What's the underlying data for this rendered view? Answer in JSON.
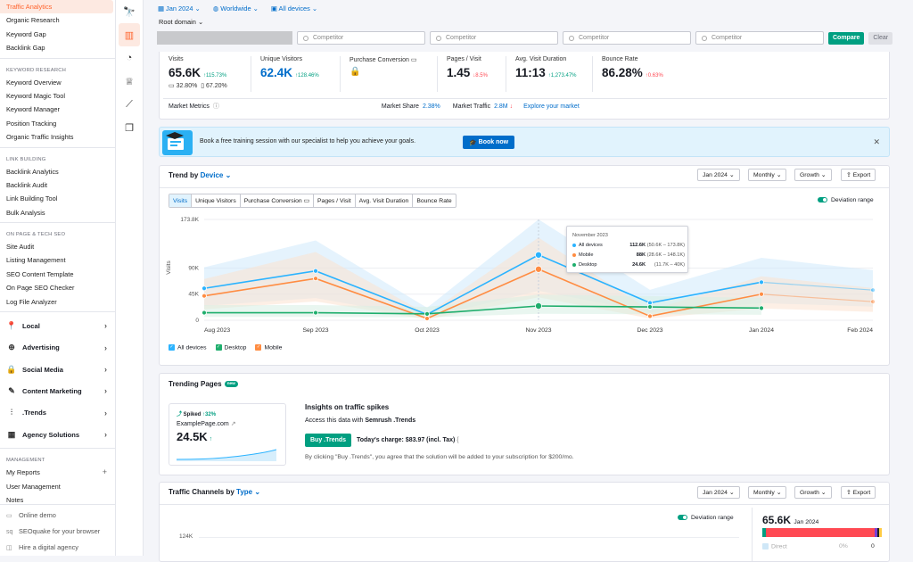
{
  "sidebar": {
    "top_items": [
      "Traffic Analytics",
      "Organic Research",
      "Keyword Gap",
      "Backlink Gap"
    ],
    "sections": [
      {
        "title": "KEYWORD RESEARCH",
        "items": [
          "Keyword Overview",
          "Keyword Magic Tool",
          "Keyword Manager",
          "Position Tracking",
          "Organic Traffic Insights"
        ]
      },
      {
        "title": "LINK BUILDING",
        "items": [
          "Backlink Analytics",
          "Backlink Audit",
          "Link Building Tool",
          "Bulk Analysis"
        ]
      },
      {
        "title": "ON PAGE & TECH SEO",
        "items": [
          "Site Audit",
          "Listing Management",
          "SEO Content Template",
          "On Page SEO Checker",
          "Log File Analyzer"
        ]
      }
    ],
    "categories": [
      "Local",
      "Advertising",
      "Social Media",
      "Content Marketing",
      ".Trends",
      "Agency Solutions"
    ],
    "management_title": "MANAGEMENT",
    "management_items": [
      "My Reports",
      "User Management",
      "Notes"
    ],
    "bottom_items": [
      "Online demo",
      "SEOquake for your browser",
      "Hire a digital agency"
    ]
  },
  "topbar": {
    "date": "Jan 2024",
    "region": "Worldwide",
    "device": "All devices",
    "root_domain": "Root domain"
  },
  "competitor_placeholder": "Competitor",
  "compare_label": "Compare",
  "clear_label": "Clear",
  "metrics": {
    "visits": {
      "label": "Visits",
      "value": "65.6K",
      "change": "115.73%",
      "desktop": "32.80%",
      "mobile": "67.20%"
    },
    "unique": {
      "label": "Unique Visitors",
      "value": "62.4K",
      "change": "128.46%"
    },
    "purchase": {
      "label": "Purchase Conversion"
    },
    "pages": {
      "label": "Pages / Visit",
      "value": "1.45",
      "change": "8.5%"
    },
    "duration": {
      "label": "Avg. Visit Duration",
      "value": "11:13",
      "change": "1,273.47%"
    },
    "bounce": {
      "label": "Bounce Rate",
      "value": "86.28%",
      "change": "0.63%"
    }
  },
  "market": {
    "label": "Market Metrics",
    "share_label": "Market Share",
    "share_value": "2.38%",
    "traffic_label": "Market Traffic",
    "traffic_value": "2.8M",
    "explore": "Explore your market"
  },
  "banner": {
    "text": "Book a free training session with our specialist to help you achieve your goals.",
    "button": "Book now"
  },
  "trend": {
    "title": "Trend by",
    "title_link": "Device",
    "date": "Jan 2024",
    "period": "Monthly",
    "type": "Growth",
    "export": "Export",
    "tabs": [
      "Visits",
      "Unique Visitors",
      "Purchase Conversion",
      "Pages / Visit",
      "Avg. Visit Duration",
      "Bounce Rate"
    ],
    "deviation": "Deviation range",
    "legend": [
      "All devices",
      "Desktop",
      "Mobile"
    ],
    "tooltip": {
      "title": "November 2023",
      "rows": [
        {
          "name": "All devices",
          "value": "112.6K",
          "range": "(50.6K – 173.8K)"
        },
        {
          "name": "Mobile",
          "value": "88K",
          "range": "(28.6K – 148.1K)"
        },
        {
          "name": "Desktop",
          "value": "24.6K",
          "range": "(11.7K – 40K)"
        }
      ]
    }
  },
  "chart_data": {
    "type": "line",
    "categories": [
      "Aug 2023",
      "Sep 2023",
      "Oct 2023",
      "Nov 2023",
      "Dec 2023",
      "Jan 2024",
      "Feb 2024"
    ],
    "yticks": [
      "173.8K",
      "90K",
      "45K",
      "0"
    ],
    "ylabel": "Visits",
    "ylim": [
      0,
      173800
    ],
    "series": [
      {
        "name": "All devices",
        "color": "#2bb3ff",
        "values": [
          55000,
          85000,
          10000,
          112600,
          30000,
          65600,
          52000
        ]
      },
      {
        "name": "Mobile",
        "color": "#ff8c42",
        "values": [
          42000,
          72000,
          3000,
          88000,
          7000,
          45000,
          32000
        ]
      },
      {
        "name": "Desktop",
        "color": "#1fae6d",
        "values": [
          13000,
          13000,
          11000,
          24600,
          23000,
          21000,
          null
        ]
      }
    ]
  },
  "trending": {
    "title": "Trending Pages",
    "badge": "new",
    "spiked": "Spiked",
    "spiked_pct": "↑32%",
    "page": "ExamplePage.com",
    "value": "24.5K",
    "insights_title": "Insights on traffic spikes",
    "access": "Access this data with",
    "access_brand": "Semrush .Trends",
    "buy": "Buy .Trends",
    "charge": "Today's charge: $83.97 (incl. Tax)",
    "disclaimer": "By clicking \"Buy .Trends\", you agree that the solution will be added to your subscription for $200/mo."
  },
  "channels": {
    "title": "Traffic Channels by",
    "title_link": "Type",
    "date": "Jan 2024",
    "period": "Monthly",
    "type": "Growth",
    "export": "Export",
    "deviation": "Deviation range",
    "ytick": "124K",
    "total": "65.6K",
    "total_date": "Jan 2024",
    "direct": "Direct",
    "direct_pct": "0%",
    "direct_val": "0"
  }
}
